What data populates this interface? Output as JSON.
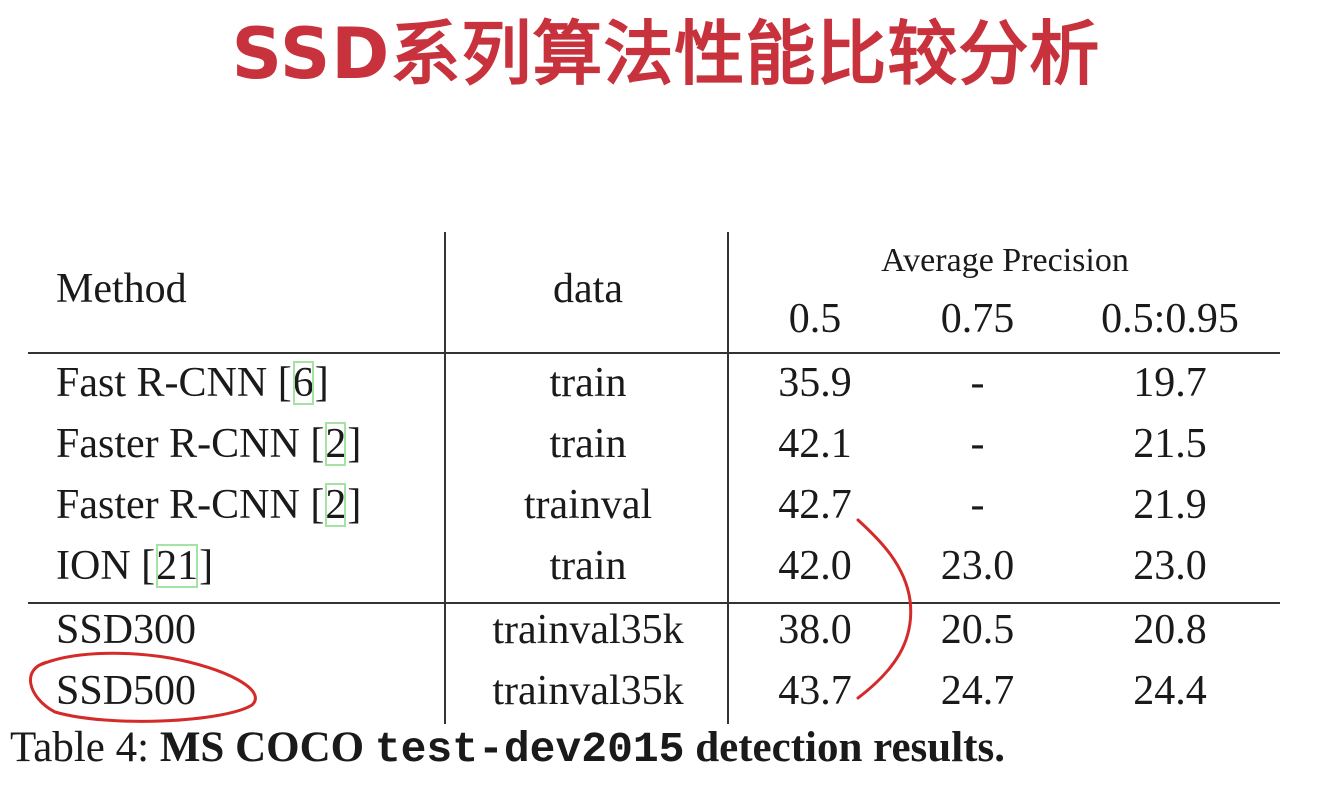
{
  "slide_title": "SSD系列算法性能比较分析",
  "table": {
    "col_method": "Method",
    "col_data": "data",
    "ap_group": "Average Precision",
    "ap_cols": [
      "0.5",
      "0.75",
      "0.5:0.95"
    ],
    "rows": [
      {
        "method": "Fast R-CNN ",
        "lb": "[",
        "ref": "6",
        "rb": "]",
        "data": "train",
        "ap50": "35.9",
        "ap75": "-",
        "ap": "19.7"
      },
      {
        "method": "Faster R-CNN ",
        "lb": "[",
        "ref": "2",
        "rb": "]",
        "data": "train",
        "ap50": "42.1",
        "ap75": "-",
        "ap": "21.5"
      },
      {
        "method": "Faster R-CNN ",
        "lb": "[",
        "ref": "2",
        "rb": "]",
        "data": "trainval",
        "ap50": "42.7",
        "ap75": "-",
        "ap": "21.9"
      },
      {
        "method": "ION ",
        "lb": "[",
        "ref": "21",
        "rb": "]",
        "data": "train",
        "ap50": "42.0",
        "ap75": "23.0",
        "ap": "23.0"
      },
      {
        "method": "SSD300",
        "lb": "",
        "ref": "",
        "rb": "",
        "data": "trainval35k",
        "ap50": "38.0",
        "ap75": "20.5",
        "ap": "20.8"
      },
      {
        "method": "SSD500",
        "lb": "",
        "ref": "",
        "rb": "",
        "data": "trainval35k",
        "ap50": "43.7",
        "ap75": "24.7",
        "ap": "24.4"
      }
    ]
  },
  "caption": {
    "prefix": "Table 4: ",
    "bold1": "MS COCO ",
    "mono": "test-dev2015",
    "bold2": " detection results."
  },
  "annotation_color": "#d42a2a"
}
